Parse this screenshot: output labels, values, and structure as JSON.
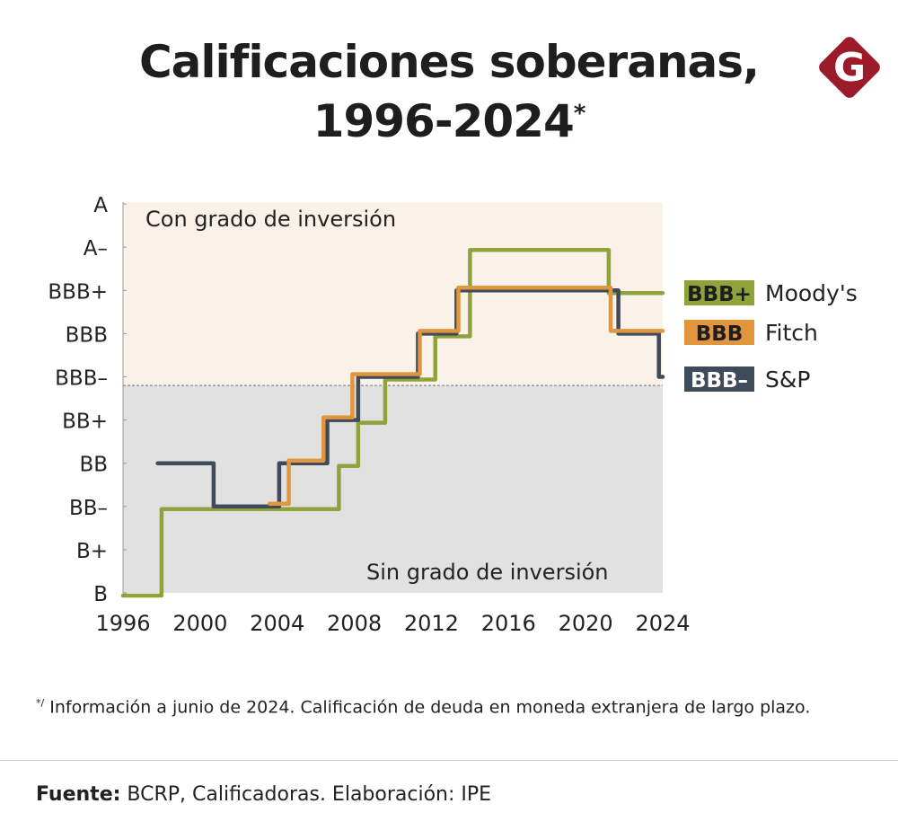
{
  "title_line1": "Calificaciones soberanas,",
  "title_line2": "1996-2024",
  "title_mark": "*",
  "logo_letter": "G",
  "colors": {
    "moodys": "#8ea33a",
    "fitch": "#e1953c",
    "sp": "#3f4b5a",
    "investment_bg": "#faf2e8",
    "noninvestment_bg": "#e1e1e1",
    "logo": "#9b1b2a"
  },
  "chart_data": {
    "type": "line",
    "step": true,
    "xlim": [
      1996,
      2024
    ],
    "x_ticks": [
      "1996",
      "2000",
      "2004",
      "2008",
      "2012",
      "2016",
      "2020",
      "2024"
    ],
    "y_categories": [
      "B",
      "B+",
      "BB-",
      "BB",
      "BB+",
      "BBB-",
      "BBB",
      "BBB+",
      "A-",
      "A"
    ],
    "y_tick_labels": [
      "B",
      "B+",
      "BB–",
      "BB",
      "BB+",
      "BBB–",
      "BBB",
      "BBB+",
      "A–",
      "A"
    ],
    "regions": [
      {
        "label": "Con grado de inversión",
        "from": "BBB-",
        "to": "A"
      },
      {
        "label": "Sin grado de inversión",
        "from": "B",
        "to": "BB+"
      }
    ],
    "legend_position": "right",
    "series": [
      {
        "name": "Moody's",
        "key": "moodys",
        "current": "BBB+",
        "steps": [
          [
            1996,
            "B"
          ],
          [
            1998.0,
            "BB-"
          ],
          [
            2007.2,
            "BB"
          ],
          [
            2008.2,
            "BB+"
          ],
          [
            2009.6,
            "BBB-"
          ],
          [
            2012.2,
            "BBB"
          ],
          [
            2014.0,
            "A-"
          ],
          [
            2021.2,
            "BBB+"
          ]
        ],
        "end": 2024
      },
      {
        "name": "Fitch",
        "key": "fitch",
        "current": "BBB",
        "steps": [
          [
            2003.6,
            "BB-"
          ],
          [
            2004.6,
            "BB"
          ],
          [
            2006.4,
            "BB+"
          ],
          [
            2007.9,
            "BBB-"
          ],
          [
            2011.4,
            "BBB"
          ],
          [
            2013.4,
            "BBB+"
          ],
          [
            2021.3,
            "BBB"
          ]
        ],
        "end": 2024
      },
      {
        "name": "S&P",
        "key": "sp",
        "current": "BBB–",
        "steps": [
          [
            1997.8,
            "BB"
          ],
          [
            2000.7,
            "BB-"
          ],
          [
            2004.1,
            "BB"
          ],
          [
            2006.6,
            "BB+"
          ],
          [
            2008.2,
            "BBB-"
          ],
          [
            2011.3,
            "BBB"
          ],
          [
            2013.3,
            "BBB+"
          ],
          [
            2021.7,
            "BBB"
          ],
          [
            2023.8,
            "BBB-"
          ]
        ],
        "end": 2024
      }
    ]
  },
  "footnote_mark": "*/",
  "footnote": "Información a junio de 2024. Calificación de deuda en moneda extranjera de largo plazo.",
  "source_label": "Fuente:",
  "source_text": "BCRP, Calificadoras. Elaboración: IPE"
}
